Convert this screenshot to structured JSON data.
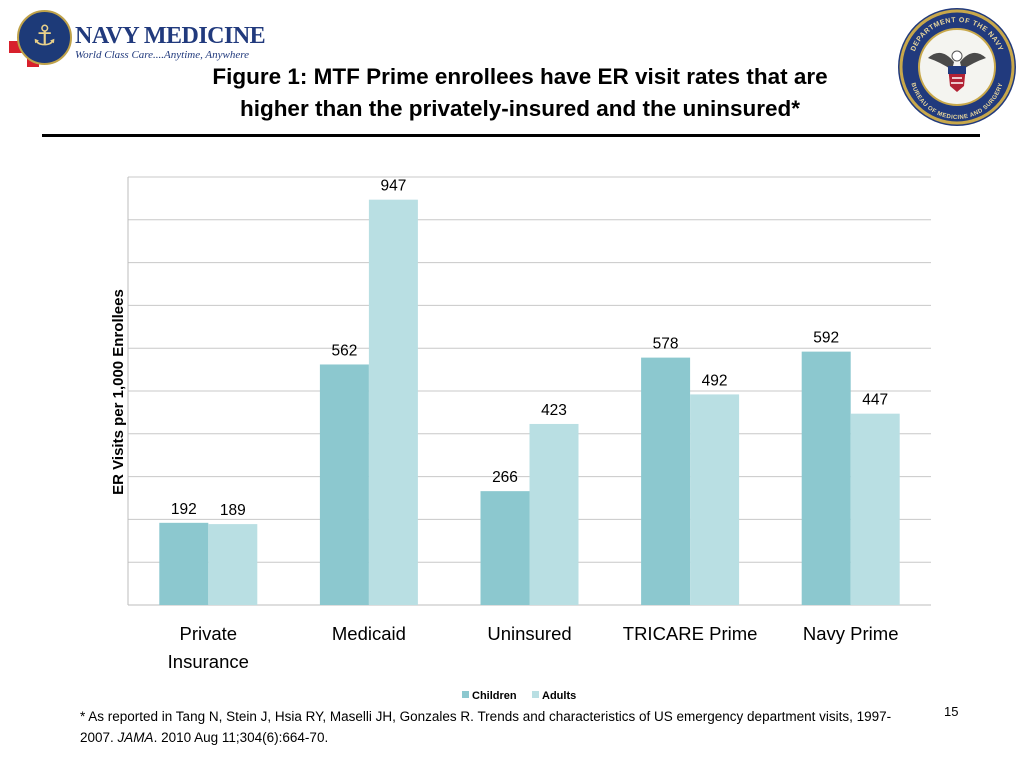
{
  "header": {
    "logo_name": "NAVY MEDICINE",
    "logo_tagline": "World Class Care....Anytime, Anywhere",
    "title_line1": "Figure 1: MTF Prime enrollees have ER visit rates that are",
    "title_line2": "higher than the privately-insured and the uninsured*",
    "seal_text_top": "DEPARTMENT OF THE NAVY",
    "seal_text_bottom": "BUREAU OF MEDICINE AND SURGERY"
  },
  "colors": {
    "children": "#8cc8cf",
    "adults": "#b9dfe3",
    "grid": "#c8c8c8",
    "navy": "#213a7d",
    "cross_red": "#d8202c",
    "seal_gold": "#c8a84b"
  },
  "chart_data": {
    "type": "bar",
    "categories": [
      "Private Insurance",
      "Medicaid",
      "Uninsured",
      "TRICARE Prime",
      "Navy Prime"
    ],
    "series": [
      {
        "name": "Children",
        "values": [
          192,
          562,
          266,
          578,
          592
        ]
      },
      {
        "name": "Adults",
        "values": [
          189,
          947,
          423,
          492,
          447
        ]
      }
    ],
    "ylabel": "ER Visits per 1,000 Enrollees",
    "ylim": [
      0,
      1000
    ],
    "grid": true,
    "legend": "bottom"
  },
  "footnote": {
    "part1": "* As reported in Tang N, Stein J, Hsia RY, Maselli JH, Gonzales R. Trends and characteristics of US emergency department visits, 1997-2007. ",
    "journal": "JAMA",
    "part2": ". 2010 Aug 11;304(6):664-70."
  },
  "page_number": "15"
}
